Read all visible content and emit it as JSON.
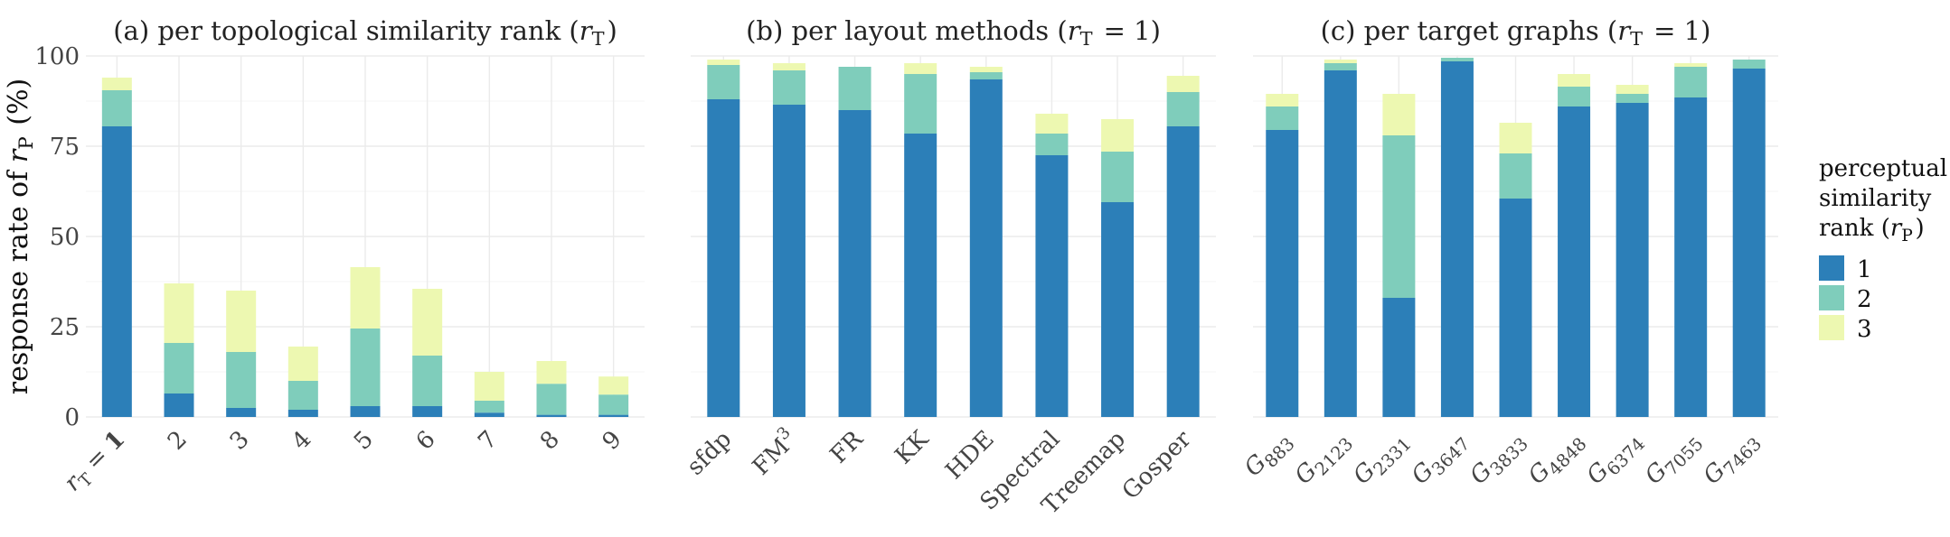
{
  "ylabel": "response rate of r_P (%)",
  "legend": {
    "title_lines": [
      "perceptual",
      "similarity",
      "rank (r_P)"
    ],
    "items": [
      {
        "label": "1",
        "color": "#2c7fb8"
      },
      {
        "label": "2",
        "color": "#7fcdbb"
      },
      {
        "label": "3",
        "color": "#edf8b1"
      }
    ]
  },
  "chart_data": [
    {
      "type": "bar",
      "stacked": true,
      "title": "(a) per topological similarity rank (r_T)",
      "categories": [
        "r_T = 1",
        "2",
        "3",
        "4",
        "5",
        "6",
        "7",
        "8",
        "9"
      ],
      "series": [
        {
          "name": "1",
          "values": [
            80.5,
            6.5,
            2.5,
            2,
            3,
            3,
            1.2,
            0.6,
            0.6
          ]
        },
        {
          "name": "2",
          "values": [
            10,
            14,
            15.5,
            8,
            21.5,
            14,
            3.3,
            8.6,
            5.6
          ]
        },
        {
          "name": "3",
          "values": [
            3.5,
            16.5,
            17,
            9.5,
            17,
            18.5,
            8,
            6.3,
            5
          ]
        }
      ],
      "ylim": [
        0,
        100
      ],
      "yticks": [
        0,
        25,
        50,
        75,
        100
      ],
      "grid": true
    },
    {
      "type": "bar",
      "stacked": true,
      "title": "(b) per layout methods (r_T = 1)",
      "categories": [
        "sfdp",
        "FM³",
        "FR",
        "KK",
        "HDE",
        "Spectral",
        "Treemap",
        "Gosper"
      ],
      "series": [
        {
          "name": "1",
          "values": [
            88,
            86.5,
            85,
            78.5,
            93.5,
            72.5,
            59.5,
            80.5
          ]
        },
        {
          "name": "2",
          "values": [
            9.5,
            9.5,
            12,
            16.5,
            2,
            6,
            14,
            9.5
          ]
        },
        {
          "name": "3",
          "values": [
            1.5,
            2,
            0,
            3,
            1.5,
            5.5,
            9,
            4.5
          ]
        }
      ],
      "ylim": [
        0,
        100
      ],
      "yticks": [
        0,
        25,
        50,
        75,
        100
      ],
      "grid": true
    },
    {
      "type": "bar",
      "stacked": true,
      "title": "(c) per target graphs (r_T = 1)",
      "categories": [
        "G883",
        "G2123",
        "G2331",
        "G3647",
        "G3833",
        "G4848",
        "G6374",
        "G7055",
        "G7463"
      ],
      "series": [
        {
          "name": "1",
          "values": [
            79.5,
            96,
            33,
            98.5,
            60.5,
            86,
            87,
            88.5,
            96.5
          ]
        },
        {
          "name": "2",
          "values": [
            6.5,
            2,
            45,
            1,
            12.5,
            5.5,
            2.5,
            8.5,
            2.5
          ]
        },
        {
          "name": "3",
          "values": [
            3.5,
            1,
            11.5,
            0,
            8.5,
            3.5,
            2.5,
            1,
            0
          ]
        }
      ],
      "ylim": [
        0,
        100
      ],
      "yticks": [
        0,
        25,
        50,
        75,
        100
      ],
      "grid": true
    }
  ]
}
